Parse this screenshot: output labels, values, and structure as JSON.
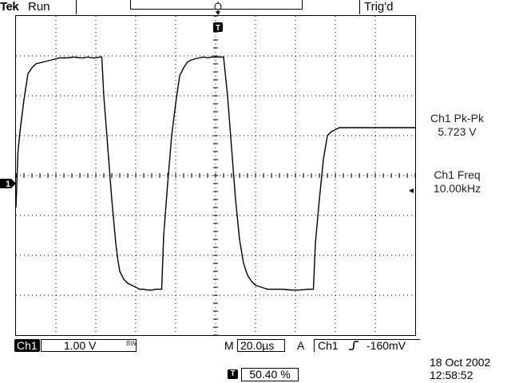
{
  "header": {
    "brand": "Tek",
    "run_state": "Run",
    "trigger_status": "Trig'd"
  },
  "trigger": {
    "top_marker_label": "T",
    "position_percent": "50.40 %"
  },
  "measurements": [
    {
      "label": "Ch1 Pk-Pk",
      "value": "5.723 V"
    },
    {
      "label": "Ch1 Freq",
      "value": "10.00kHz"
    }
  ],
  "bottom": {
    "channel": "Ch1",
    "volts_per_div": "1.00 V",
    "bandwidth_limit": "BW",
    "timebase_prefix": "M",
    "timebase": "20.0µs",
    "trigger_mode": "A",
    "trigger_source": "Ch1",
    "trigger_level": "-160mV"
  },
  "datetime": {
    "date": "18 Oct  2002",
    "time": "12:58:52"
  },
  "channel_marker": "1",
  "colors": {
    "background": "#ffffff",
    "foreground": "#000000"
  },
  "chart_data": {
    "type": "line",
    "title": "",
    "xlabel": "",
    "ylabel": "",
    "x_units": "µs",
    "y_units": "V",
    "xlim": [
      -100,
      100
    ],
    "ylim": [
      -4,
      4
    ],
    "grid": true,
    "series": [
      {
        "x": [
          -100,
          -99,
          -98,
          -96,
          -94,
          -92,
          -90,
          -86,
          -82,
          -78,
          -74,
          -71,
          -68,
          -66,
          -64,
          -62,
          -60,
          -58,
          -57,
          -56,
          -54,
          -52,
          -50,
          -49,
          -48,
          -46,
          -44,
          -42,
          -40,
          -38,
          -36,
          -34,
          -32,
          -30,
          -28,
          -27,
          -26,
          -24,
          -22,
          -20,
          -18,
          -16,
          -14,
          -12,
          -10,
          -8,
          -6,
          -4,
          -2,
          0,
          2,
          4,
          6,
          8,
          10,
          12,
          14,
          16,
          18,
          20,
          23,
          26,
          30,
          34,
          38,
          42,
          46,
          49,
          50,
          52,
          54,
          56,
          58,
          60,
          62,
          64,
          66,
          68,
          70,
          72,
          74,
          76,
          78,
          80,
          82,
          84,
          86,
          88,
          90,
          92,
          94,
          96,
          98,
          100
        ],
        "values": [
          -0.8,
          0.6,
          1.1,
          1.9,
          2.55,
          2.7,
          2.8,
          2.85,
          2.9,
          2.95,
          2.95,
          2.97,
          2.95,
          2.95,
          2.97,
          2.95,
          2.95,
          2.97,
          2.97,
          2.0,
          0.7,
          -0.6,
          -1.7,
          -2.1,
          -2.4,
          -2.6,
          -2.7,
          -2.75,
          -2.8,
          -2.85,
          -2.85,
          -2.87,
          -2.87,
          -2.85,
          -2.85,
          -2.85,
          -1.5,
          -0.2,
          1.0,
          1.8,
          2.5,
          2.7,
          2.85,
          2.9,
          2.93,
          2.95,
          2.97,
          2.95,
          2.97,
          2.97,
          2.97,
          2.97,
          2.0,
          0.7,
          -0.6,
          -1.6,
          -2.2,
          -2.5,
          -2.65,
          -2.75,
          -2.8,
          -2.85,
          -2.85,
          -2.85,
          -2.87,
          -2.87,
          -2.85,
          -2.85,
          -1.7,
          -0.6,
          0.4,
          1.0,
          1.1,
          1.15,
          1.2,
          1.2,
          1.2,
          1.2,
          1.2,
          1.2,
          1.2,
          1.2,
          1.2,
          1.2,
          1.2,
          1.2,
          1.2,
          1.2,
          1.2,
          1.2,
          1.2,
          1.2,
          1.2,
          1.2
        ]
      }
    ]
  }
}
